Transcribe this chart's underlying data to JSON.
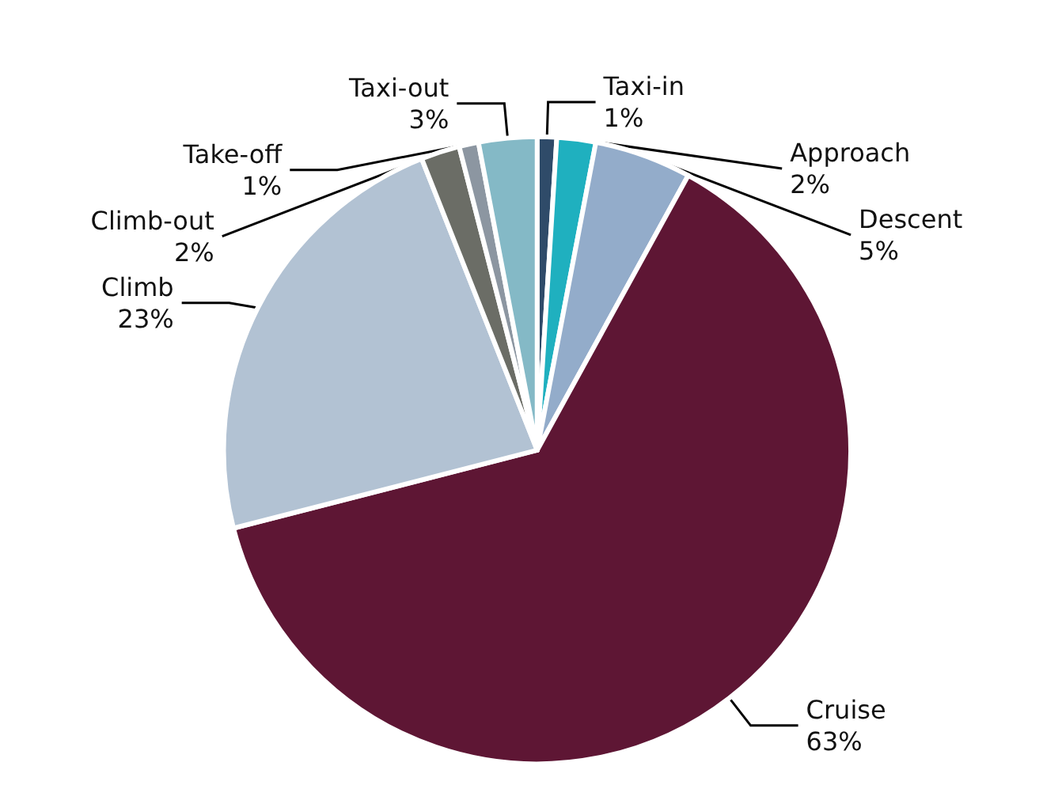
{
  "chart_data": {
    "type": "pie",
    "categories": [
      "Taxi-in",
      "Approach",
      "Descent",
      "Cruise",
      "Climb",
      "Climb-out",
      "Take-off",
      "Taxi-out"
    ],
    "values": [
      1,
      2,
      5,
      63,
      23,
      2,
      1,
      3
    ],
    "value_labels": [
      "1%",
      "2%",
      "5%",
      "63%",
      "23%",
      "2%",
      "1%",
      "3%"
    ],
    "colors": [
      "#2f4b69",
      "#1fb0bf",
      "#93acca",
      "#5e1634",
      "#b2c2d3",
      "#6b6d66",
      "#8c96a1",
      "#84b9c6"
    ],
    "legend": false
  }
}
